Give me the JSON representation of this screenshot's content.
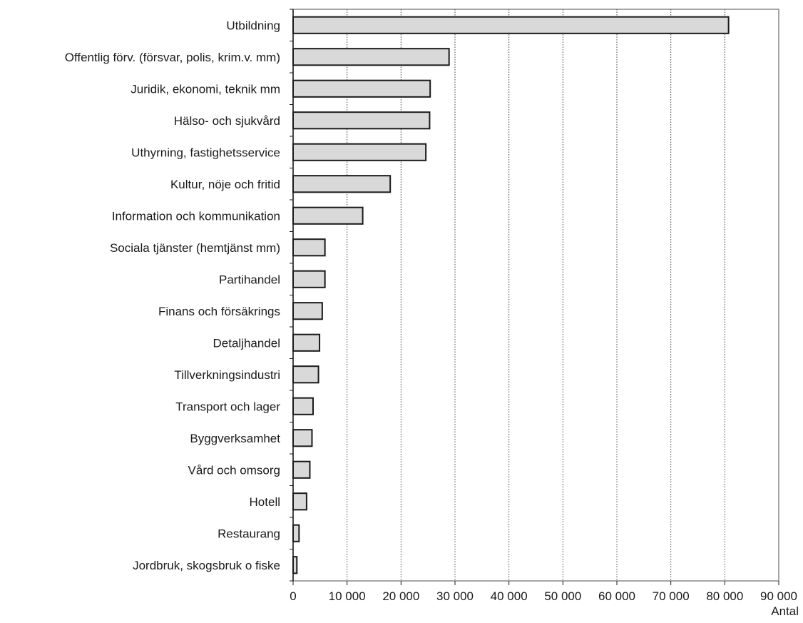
{
  "chart_data": {
    "type": "bar",
    "orientation": "horizontal",
    "categories": [
      "Utbildning",
      "Offentlig förv. (försvar, polis, krim.v. mm)",
      "Juridik, ekonomi, teknik mm",
      "Hälso- och sjukvård",
      "Uthyrning, fastighetsservice",
      "Kultur, nöje och fritid",
      "Information och kommunikation",
      "Sociala tjänster (hemtjänst mm)",
      "Partihandel",
      "Finans och försäkrings",
      "Detaljhandel",
      "Tillverkningsindustri",
      "Transport och lager",
      "Byggverksamhet",
      "Vård och omsorg",
      "Hotell",
      "Restaurang",
      "Jordbruk, skogsbruk o fiske"
    ],
    "values": [
      80700,
      28900,
      25400,
      25300,
      24600,
      18000,
      12900,
      5900,
      5900,
      5400,
      4900,
      4700,
      3700,
      3500,
      3100,
      2500,
      1100,
      700
    ],
    "xlabel": "Antal",
    "xlim": [
      0,
      90000
    ],
    "tick_values": [
      0,
      10000,
      20000,
      30000,
      40000,
      50000,
      60000,
      70000,
      80000,
      90000
    ],
    "tick_labels": [
      "0",
      "10 000",
      "20 000",
      "30 000",
      "40 000",
      "50 000",
      "60 000",
      "70 000",
      "80 000",
      "90 000"
    ],
    "grid": "vertical dotted",
    "colors": {
      "bar_fill": "#d9d9d9",
      "bar_stroke": "#1a1a1a",
      "frame": "#888888",
      "grid": "#444444"
    }
  }
}
